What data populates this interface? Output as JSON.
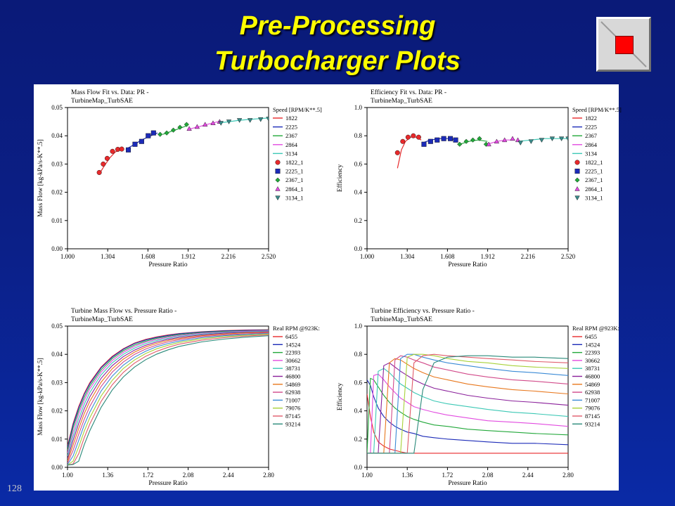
{
  "slide": {
    "title_line1": "Pre-Processing",
    "title_line2": "Turbocharger Plots",
    "page_number": "128",
    "stop_button_icon": "stop-icon"
  },
  "colors": {
    "title": "#ffff00",
    "series": [
      "#e8292b",
      "#1c2bb8",
      "#22a83a",
      "#e24be0",
      "#3cc8b5",
      "#8a1f9a",
      "#e8781e",
      "#d24a8a",
      "#3a8ad6",
      "#a8d23a",
      "#e05a6a",
      "#2a8a7a"
    ]
  },
  "chart_data": [
    {
      "type": "scatter",
      "title_line1": "Mass Flow Fit vs. Data: PR -",
      "title_line2": "TurbineMap_TurbSAE",
      "xlabel": "Pressure Ratio",
      "ylabel": "Mass Flow [kg-kPa/s-K**.5]",
      "xlim": [
        1.0,
        2.52
      ],
      "ylim": [
        0.0,
        0.05
      ],
      "xticks": [
        "1.000",
        "1.304",
        "1.608",
        "1.912",
        "2.216",
        "2.520"
      ],
      "yticks": [
        "0.00",
        "0.01",
        "0.02",
        "0.03",
        "0.04",
        "0.05"
      ],
      "legend_title": "Speed [RPM/K**.5]",
      "lines": [
        {
          "name": "1822",
          "x": [
            1.24,
            1.28,
            1.32,
            1.36,
            1.41
          ],
          "y": [
            0.0265,
            0.0295,
            0.0322,
            0.0342,
            0.0355
          ]
        },
        {
          "name": "2225",
          "x": [
            1.44,
            1.5,
            1.56,
            1.62,
            1.68
          ],
          "y": [
            0.0352,
            0.0368,
            0.0385,
            0.0398,
            0.041
          ]
        },
        {
          "name": "2367",
          "x": [
            1.72,
            1.78,
            1.84,
            1.9
          ],
          "y": [
            0.0405,
            0.0415,
            0.0425,
            0.0435
          ]
        },
        {
          "name": "2864",
          "x": [
            1.93,
            2.0,
            2.07,
            2.14
          ],
          "y": [
            0.0425,
            0.0433,
            0.0442,
            0.045
          ]
        },
        {
          "name": "3134",
          "x": [
            2.14,
            2.22,
            2.3,
            2.38,
            2.46,
            2.52
          ],
          "y": [
            0.0445,
            0.045,
            0.0455,
            0.0458,
            0.0461,
            0.0463
          ]
        }
      ],
      "points": [
        {
          "name": "1822_1",
          "marker": "circle",
          "x": [
            1.24,
            1.27,
            1.3,
            1.34,
            1.38,
            1.41
          ],
          "y": [
            0.027,
            0.03,
            0.032,
            0.0345,
            0.0352,
            0.0353
          ]
        },
        {
          "name": "2225_1",
          "marker": "square",
          "x": [
            1.46,
            1.51,
            1.56,
            1.61,
            1.65
          ],
          "y": [
            0.035,
            0.037,
            0.038,
            0.04,
            0.041
          ]
        },
        {
          "name": "2367_1",
          "marker": "diamond",
          "x": [
            1.7,
            1.75,
            1.8,
            1.85,
            1.9
          ],
          "y": [
            0.0405,
            0.041,
            0.042,
            0.043,
            0.044
          ]
        },
        {
          "name": "2864_1",
          "marker": "triangle-up",
          "x": [
            1.92,
            1.98,
            2.04,
            2.1,
            2.15
          ],
          "y": [
            0.0425,
            0.0432,
            0.044,
            0.0445,
            0.045
          ]
        },
        {
          "name": "3134_1",
          "marker": "triangle-down",
          "x": [
            2.16,
            2.22,
            2.3,
            2.38,
            2.46,
            2.52
          ],
          "y": [
            0.0445,
            0.045,
            0.0455,
            0.0455,
            0.0458,
            0.046
          ]
        }
      ]
    },
    {
      "type": "scatter",
      "title_line1": "Efficiency Fit vs. Data: PR -",
      "title_line2": "TurbineMap_TurbSAE",
      "xlabel": "Pressure Ratio",
      "ylabel": "Efficiency",
      "xlim": [
        1.0,
        2.52
      ],
      "ylim": [
        0.0,
        1.0
      ],
      "xticks": [
        "1.000",
        "1.304",
        "1.608",
        "1.912",
        "2.216",
        "2.520"
      ],
      "yticks": [
        "0.0",
        "0.2",
        "0.4",
        "0.6",
        "0.8",
        "1.0"
      ],
      "legend_title": "Speed [RPM/K**.5]",
      "lines": [
        {
          "name": "1822",
          "x": [
            1.23,
            1.26,
            1.29,
            1.33,
            1.37,
            1.41
          ],
          "y": [
            0.57,
            0.7,
            0.76,
            0.79,
            0.79,
            0.77
          ]
        },
        {
          "name": "2225",
          "x": [
            1.42,
            1.48,
            1.55,
            1.62,
            1.68
          ],
          "y": [
            0.75,
            0.77,
            0.78,
            0.78,
            0.77
          ]
        },
        {
          "name": "2367",
          "x": [
            1.7,
            1.77,
            1.84,
            1.91
          ],
          "y": [
            0.74,
            0.76,
            0.77,
            0.76
          ]
        },
        {
          "name": "2864",
          "x": [
            1.91,
            1.98,
            2.05,
            2.12
          ],
          "y": [
            0.74,
            0.76,
            0.77,
            0.77
          ]
        },
        {
          "name": "3134",
          "x": [
            2.14,
            2.24,
            2.34,
            2.44,
            2.52
          ],
          "y": [
            0.76,
            0.77,
            0.78,
            0.78,
            0.78
          ]
        }
      ],
      "points": [
        {
          "name": "1822_1",
          "marker": "circle",
          "x": [
            1.23,
            1.27,
            1.31,
            1.35,
            1.39
          ],
          "y": [
            0.68,
            0.76,
            0.79,
            0.8,
            0.79
          ]
        },
        {
          "name": "2225_1",
          "marker": "square",
          "x": [
            1.43,
            1.48,
            1.53,
            1.58,
            1.63,
            1.67
          ],
          "y": [
            0.74,
            0.76,
            0.77,
            0.78,
            0.78,
            0.77
          ]
        },
        {
          "name": "2367_1",
          "marker": "diamond",
          "x": [
            1.7,
            1.75,
            1.8,
            1.85,
            1.9
          ],
          "y": [
            0.74,
            0.76,
            0.77,
            0.78,
            0.74
          ]
        },
        {
          "name": "2864_1",
          "marker": "triangle-up",
          "x": [
            1.92,
            1.98,
            2.04,
            2.1,
            2.14
          ],
          "y": [
            0.74,
            0.76,
            0.77,
            0.78,
            0.77
          ]
        },
        {
          "name": "3134_1",
          "marker": "triangle-down",
          "x": [
            2.16,
            2.24,
            2.32,
            2.4,
            2.47,
            2.52
          ],
          "y": [
            0.75,
            0.76,
            0.77,
            0.78,
            0.78,
            0.78
          ]
        }
      ]
    },
    {
      "type": "line",
      "title_line1": "Turbine Mass Flow vs. Pressure Ratio -",
      "title_line2": "TurbineMap_TurbSAE",
      "xlabel": "Pressure Ratio",
      "ylabel": "Mass Flow [kg-kPa/s-K**.5]",
      "xlim": [
        1.0,
        2.8
      ],
      "ylim": [
        0.0,
        0.05
      ],
      "xticks": [
        "1.00",
        "1.36",
        "1.72",
        "2.08",
        "2.44",
        "2.80"
      ],
      "yticks": [
        "0.00",
        "0.01",
        "0.02",
        "0.03",
        "0.04",
        "0.05"
      ],
      "legend_title": "Real RPM @923K:",
      "x": [
        1.0,
        1.05,
        1.1,
        1.15,
        1.2,
        1.3,
        1.4,
        1.5,
        1.6,
        1.7,
        1.8,
        1.9,
        2.0,
        2.2,
        2.4,
        2.6,
        2.8
      ],
      "series": [
        {
          "name": "6455",
          "values": [
            0.0075,
            0.0155,
            0.0215,
            0.0262,
            0.03,
            0.0355,
            0.0393,
            0.042,
            0.044,
            0.0453,
            0.0462,
            0.0469,
            0.0474,
            0.048,
            0.0484,
            0.0486,
            0.0487
          ]
        },
        {
          "name": "14524",
          "values": [
            0.007,
            0.015,
            0.021,
            0.0258,
            0.0296,
            0.0352,
            0.039,
            0.0418,
            0.0438,
            0.0451,
            0.046,
            0.0467,
            0.0473,
            0.0479,
            0.0483,
            0.0485,
            0.0486
          ]
        },
        {
          "name": "22393",
          "values": [
            0.006,
            0.014,
            0.02,
            0.0248,
            0.0288,
            0.0345,
            0.0385,
            0.0413,
            0.0433,
            0.0447,
            0.0457,
            0.0464,
            0.047,
            0.0477,
            0.0481,
            0.0483,
            0.0485
          ]
        },
        {
          "name": "30662",
          "values": [
            0.005,
            0.0125,
            0.0188,
            0.0237,
            0.0278,
            0.0337,
            0.0378,
            0.0407,
            0.0428,
            0.0443,
            0.0453,
            0.0461,
            0.0467,
            0.0475,
            0.0479,
            0.0482,
            0.0484
          ]
        },
        {
          "name": "38731",
          "values": [
            0.004,
            0.011,
            0.0172,
            0.0223,
            0.0265,
            0.0327,
            0.037,
            0.04,
            0.0422,
            0.0438,
            0.0449,
            0.0457,
            0.0464,
            0.0472,
            0.0477,
            0.048,
            0.0482
          ]
        },
        {
          "name": "46800",
          "values": [
            0.003,
            0.0095,
            0.0155,
            0.0207,
            0.025,
            0.0315,
            0.036,
            0.0392,
            0.0415,
            0.0432,
            0.0444,
            0.0453,
            0.046,
            0.0469,
            0.0475,
            0.0478,
            0.048
          ]
        },
        {
          "name": "54869",
          "values": [
            0.0022,
            0.0078,
            0.0137,
            0.019,
            0.0234,
            0.0301,
            0.0349,
            0.0383,
            0.0408,
            0.0426,
            0.0439,
            0.0449,
            0.0456,
            0.0466,
            0.0472,
            0.0476,
            0.0478
          ]
        },
        {
          "name": "62938",
          "values": [
            0.0015,
            0.006,
            0.0117,
            0.017,
            0.0216,
            0.0286,
            0.0337,
            0.0373,
            0.04,
            0.0419,
            0.0433,
            0.0444,
            0.0452,
            0.0463,
            0.0469,
            0.0473,
            0.0476
          ]
        },
        {
          "name": "71007",
          "values": [
            0.001,
            0.004,
            0.0095,
            0.015,
            0.0196,
            0.027,
            0.0323,
            0.0362,
            0.039,
            0.0411,
            0.0427,
            0.0438,
            0.0447,
            0.0459,
            0.0466,
            0.0471,
            0.0474
          ]
        },
        {
          "name": "79076",
          "values": [
            0.0008,
            0.0022,
            0.0072,
            0.0128,
            0.0176,
            0.0252,
            0.0308,
            0.035,
            0.038,
            0.0403,
            0.042,
            0.0432,
            0.0442,
            0.0455,
            0.0463,
            0.0468,
            0.0472
          ]
        },
        {
          "name": "87145",
          "values": [
            0.0008,
            0.0012,
            0.0048,
            0.0105,
            0.0154,
            0.0233,
            0.0292,
            0.0336,
            0.0369,
            0.0393,
            0.0411,
            0.0425,
            0.0436,
            0.045,
            0.0459,
            0.0465,
            0.0469
          ]
        },
        {
          "name": "93214",
          "values": [
            0.0008,
            0.001,
            0.0022,
            0.008,
            0.013,
            0.0212,
            0.0274,
            0.032,
            0.0355,
            0.0381,
            0.0401,
            0.0416,
            0.0428,
            0.0444,
            0.0454,
            0.0461,
            0.0466
          ]
        }
      ]
    },
    {
      "type": "line",
      "title_line1": "Turbine Efficiency vs. Pressure Ratio -",
      "title_line2": "TurbineMap_TurbSAE",
      "xlabel": "Pressure Ratio",
      "ylabel": "Efficiency",
      "xlim": [
        1.0,
        2.8
      ],
      "ylim": [
        0.0,
        1.0
      ],
      "xticks": [
        "1.00",
        "1.36",
        "1.72",
        "2.08",
        "2.44",
        "2.80"
      ],
      "yticks": [
        "0.0",
        "0.2",
        "0.4",
        "0.6",
        "0.8",
        "1.0"
      ],
      "legend_title": "Real RPM @923K:",
      "x": [
        1.0,
        1.03,
        1.06,
        1.1,
        1.15,
        1.2,
        1.25,
        1.3,
        1.36,
        1.42,
        1.5,
        1.6,
        1.72,
        1.9,
        2.08,
        2.3,
        2.5,
        2.8
      ],
      "series": [
        {
          "name": "6455",
          "values": [
            0.52,
            0.36,
            0.25,
            0.18,
            0.15,
            0.13,
            0.12,
            0.11,
            0.1,
            0.1,
            0.1,
            0.1,
            0.1,
            0.1,
            0.1,
            0.1,
            0.1,
            0.1
          ]
        },
        {
          "name": "14524",
          "values": [
            0.62,
            0.58,
            0.5,
            0.42,
            0.36,
            0.32,
            0.29,
            0.27,
            0.25,
            0.24,
            0.22,
            0.21,
            0.2,
            0.19,
            0.18,
            0.17,
            0.17,
            0.16
          ]
        },
        {
          "name": "22393",
          "values": [
            0.1,
            0.63,
            0.62,
            0.57,
            0.51,
            0.46,
            0.42,
            0.39,
            0.36,
            0.34,
            0.32,
            0.3,
            0.29,
            0.27,
            0.26,
            0.25,
            0.24,
            0.23
          ]
        },
        {
          "name": "30662",
          "values": [
            0.1,
            0.1,
            0.65,
            0.66,
            0.62,
            0.57,
            0.53,
            0.49,
            0.46,
            0.43,
            0.41,
            0.39,
            0.37,
            0.35,
            0.33,
            0.32,
            0.31,
            0.29
          ]
        },
        {
          "name": "38731",
          "values": [
            0.1,
            0.1,
            0.1,
            0.68,
            0.7,
            0.67,
            0.63,
            0.59,
            0.56,
            0.53,
            0.5,
            0.47,
            0.45,
            0.43,
            0.41,
            0.39,
            0.38,
            0.36
          ]
        },
        {
          "name": "46800",
          "values": [
            0.1,
            0.1,
            0.1,
            0.1,
            0.72,
            0.74,
            0.71,
            0.68,
            0.65,
            0.62,
            0.59,
            0.56,
            0.54,
            0.51,
            0.49,
            0.47,
            0.46,
            0.44
          ]
        },
        {
          "name": "54869",
          "values": [
            0.1,
            0.1,
            0.1,
            0.1,
            0.1,
            0.74,
            0.77,
            0.76,
            0.73,
            0.7,
            0.67,
            0.64,
            0.62,
            0.59,
            0.57,
            0.55,
            0.54,
            0.52
          ]
        },
        {
          "name": "62938",
          "values": [
            0.1,
            0.1,
            0.1,
            0.1,
            0.1,
            0.1,
            0.76,
            0.79,
            0.78,
            0.76,
            0.74,
            0.71,
            0.69,
            0.66,
            0.64,
            0.62,
            0.61,
            0.59
          ]
        },
        {
          "name": "71007",
          "values": [
            0.1,
            0.1,
            0.1,
            0.1,
            0.1,
            0.1,
            0.1,
            0.77,
            0.8,
            0.8,
            0.78,
            0.76,
            0.74,
            0.72,
            0.7,
            0.68,
            0.67,
            0.65
          ]
        },
        {
          "name": "79076",
          "values": [
            0.1,
            0.1,
            0.1,
            0.1,
            0.1,
            0.1,
            0.1,
            0.1,
            0.78,
            0.8,
            0.8,
            0.79,
            0.77,
            0.75,
            0.74,
            0.72,
            0.71,
            0.7
          ]
        },
        {
          "name": "87145",
          "values": [
            0.1,
            0.1,
            0.1,
            0.1,
            0.1,
            0.1,
            0.1,
            0.1,
            0.1,
            0.74,
            0.79,
            0.8,
            0.79,
            0.78,
            0.77,
            0.76,
            0.75,
            0.74
          ]
        },
        {
          "name": "93214",
          "values": [
            0.1,
            0.1,
            0.1,
            0.1,
            0.1,
            0.1,
            0.1,
            0.1,
            0.1,
            0.1,
            0.55,
            0.74,
            0.78,
            0.79,
            0.79,
            0.78,
            0.78,
            0.77
          ]
        }
      ]
    }
  ]
}
